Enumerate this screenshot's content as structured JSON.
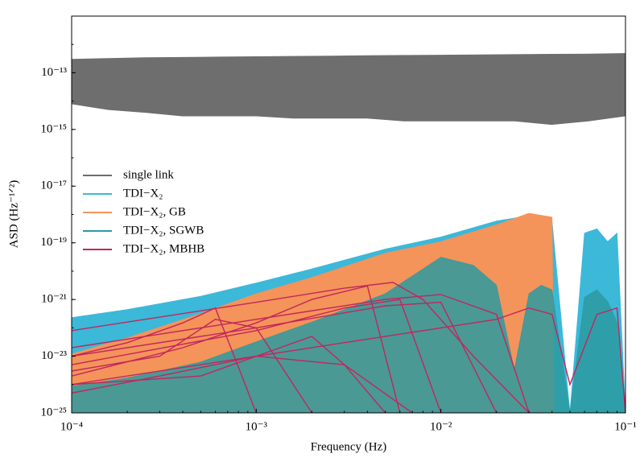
{
  "chart_data": {
    "type": "area",
    "xlabel": "Frequency (Hz)",
    "ylabel": "ASD (Hz⁻¹ᐟ²)",
    "xscale": "log",
    "yscale": "log",
    "xlim": [
      0.0001,
      0.1
    ],
    "ylim": [
      1e-25,
      1e-11
    ],
    "xticks": [
      {
        "value": 0.0001,
        "label": "10⁻⁴"
      },
      {
        "value": 0.001,
        "label": "10⁻³"
      },
      {
        "value": 0.01,
        "label": "10⁻²"
      },
      {
        "value": 0.1,
        "label": "10⁻¹"
      }
    ],
    "yticks": [
      {
        "value": 1e-25,
        "label": "10⁻²⁵"
      },
      {
        "value": 1e-23,
        "label": "10⁻²³"
      },
      {
        "value": 1e-21,
        "label": "10⁻²¹"
      },
      {
        "value": 1e-19,
        "label": "10⁻¹⁹"
      },
      {
        "value": 1e-17,
        "label": "10⁻¹⁷"
      },
      {
        "value": 1e-15,
        "label": "10⁻¹⁵"
      },
      {
        "value": 1e-13,
        "label": "10⁻¹³"
      }
    ],
    "legend": "upper left",
    "series": [
      {
        "name": "single link",
        "color": "#6e6e6e",
        "opacity": 1,
        "x": [
          0.0001,
          0.000158,
          0.000251,
          0.000398,
          0.000631,
          0.001,
          0.00158,
          0.00251,
          0.00398,
          0.00631,
          0.01,
          0.0158,
          0.0251,
          0.0398,
          0.0631,
          0.1
        ],
        "upper": [
          3e-13,
          3.2e-13,
          3.4e-13,
          3.5e-13,
          3.6e-13,
          3.7e-13,
          3.8e-13,
          3.9e-13,
          4e-13,
          4.1e-13,
          4.2e-13,
          4.3e-13,
          4.4e-13,
          4.5e-13,
          4.6e-13,
          4.8e-13
        ],
        "lower": [
          8e-15,
          5e-15,
          4e-15,
          3e-15,
          3e-15,
          3e-15,
          2.5e-15,
          2.5e-15,
          2.5e-15,
          2e-15,
          2e-15,
          2e-15,
          2e-15,
          1.5e-15,
          2e-15,
          3e-15
        ]
      },
      {
        "name": "TDI−X₂",
        "color": "#3cb8d9",
        "opacity": 1,
        "x": [
          0.0001,
          0.0002,
          0.0005,
          0.001,
          0.002,
          0.005,
          0.01,
          0.02,
          0.03,
          0.04,
          0.05,
          0.06,
          0.07,
          0.08,
          0.09,
          0.1
        ],
        "upper": [
          2.3e-22,
          4.4e-22,
          1.3e-21,
          3.8e-21,
          1.2e-20,
          6e-20,
          1.6e-19,
          5.9e-19,
          9e-19,
          6e-19,
          1e-25,
          2.2e-19,
          3.1e-19,
          1.1e-19,
          2.2e-19,
          1e-25
        ],
        "lower": [
          1e-25,
          1e-25,
          1e-25,
          1e-25,
          1e-25,
          1e-25,
          1e-25,
          1e-25,
          1e-25,
          1e-25,
          1e-25,
          1e-25,
          1e-25,
          1e-25,
          1e-25,
          1e-25
        ]
      },
      {
        "name": "TDI−X₂, GB",
        "color": "#f4935a",
        "opacity": 1,
        "x": [
          0.0001,
          0.0002,
          0.0005,
          0.001,
          0.002,
          0.005,
          0.01,
          0.02,
          0.03,
          0.04,
          0.041
        ],
        "upper": [
          1.2e-23,
          4.4e-23,
          3.2e-22,
          1.6e-21,
          6e-21,
          4.3e-20,
          1.1e-19,
          4.3e-19,
          1.1e-18,
          8e-19,
          1e-25
        ],
        "lower": [
          1e-25,
          1e-25,
          1e-25,
          1e-25,
          1e-25,
          1e-25,
          1e-25,
          1e-25,
          1e-25,
          1e-25,
          1e-25
        ]
      },
      {
        "name": "TDI−X₂, SGWB",
        "color": "#2b9aa0",
        "opacity": 0.85,
        "x": [
          0.0001,
          0.0002,
          0.0005,
          0.001,
          0.002,
          0.005,
          0.01,
          0.015,
          0.02,
          0.025,
          0.03,
          0.035,
          0.04,
          0.05,
          0.06,
          0.07,
          0.08,
          0.09,
          0.1
        ],
        "upper": [
          8.7e-25,
          1.7e-24,
          6.2e-24,
          3.2e-23,
          1.6e-22,
          1.6e-21,
          3.1e-20,
          1.6e-20,
          3.2e-21,
          3.2e-24,
          1.6e-21,
          3.2e-21,
          2.2e-21,
          1e-25,
          1.2e-21,
          2.2e-21,
          8.5e-22,
          1.6e-22,
          1e-25
        ],
        "lower": [
          1e-25,
          1e-25,
          1e-25,
          1e-25,
          1e-25,
          1e-25,
          1e-25,
          1e-25,
          1e-25,
          1e-25,
          1e-25,
          1e-25,
          1e-25,
          1e-25,
          1e-25,
          1e-25,
          1e-25,
          1e-25,
          1e-25
        ]
      },
      {
        "name": "TDI−X₂, MBHB",
        "color": "#c2265c",
        "opacity": 1,
        "curves": [
          {
            "x": [
              0.0001,
              0.001,
              0.003,
              0.0055,
              0.008,
              0.015,
              0.03
            ],
            "values": [
              8e-23,
              8e-22,
              2.5e-21,
              4e-21,
              1e-21,
              1e-23,
              1e-25
            ]
          },
          {
            "x": [
              0.0001,
              0.0004,
              0.001,
              0.002,
              0.004,
              0.006
            ],
            "values": [
              2e-24,
              2e-23,
              1.5e-22,
              1e-21,
              3e-21,
              1e-25
            ]
          },
          {
            "x": [
              0.0001,
              0.0003,
              0.0006,
              0.001,
              0.002
            ],
            "values": [
              3e-24,
              1e-23,
              2e-22,
              1e-22,
              1e-25
            ]
          },
          {
            "x": [
              0.0001,
              0.001,
              0.01,
              0.02,
              0.03,
              0.04,
              0.05,
              0.07,
              0.09,
              0.1
            ],
            "values": [
              1e-24,
              1e-23,
              1e-22,
              2e-22,
              5e-22,
              3e-22,
              1e-24,
              3e-22,
              5e-22,
              1e-25
            ]
          },
          {
            "x": [
              0.0001,
              0.001,
              0.005,
              0.01,
              0.02,
              0.03
            ],
            "values": [
              2e-23,
              2e-22,
              1e-21,
              1.5e-21,
              3e-22,
              1e-25
            ]
          },
          {
            "x": [
              0.0001,
              0.0005,
              0.001,
              0.002,
              0.003,
              0.005
            ],
            "values": [
              1e-24,
              2e-24,
              1e-23,
              5e-23,
              5e-24,
              1e-25
            ]
          },
          {
            "x": [
              0.0001,
              0.0003,
              0.001,
              0.003,
              0.007
            ],
            "values": [
              5e-25,
              2e-24,
              1e-23,
              5e-24,
              1e-25
            ]
          },
          {
            "x": [
              0.0001,
              0.001,
              0.005,
              0.01,
              0.02
            ],
            "values": [
              1e-23,
              1e-22,
              6e-22,
              8e-22,
              1e-25
            ]
          },
          {
            "x": [
              0.0001,
              0.001,
              0.003,
              0.006,
              0.01
            ],
            "values": [
              5e-24,
              8e-23,
              5e-22,
              1e-21,
              1e-25
            ]
          },
          {
            "x": [
              0.0001,
              0.0002,
              0.0004,
              0.0006,
              0.001
            ],
            "values": [
              1e-23,
              3e-23,
              1.5e-22,
              5e-22,
              1e-25
            ]
          }
        ]
      }
    ]
  }
}
